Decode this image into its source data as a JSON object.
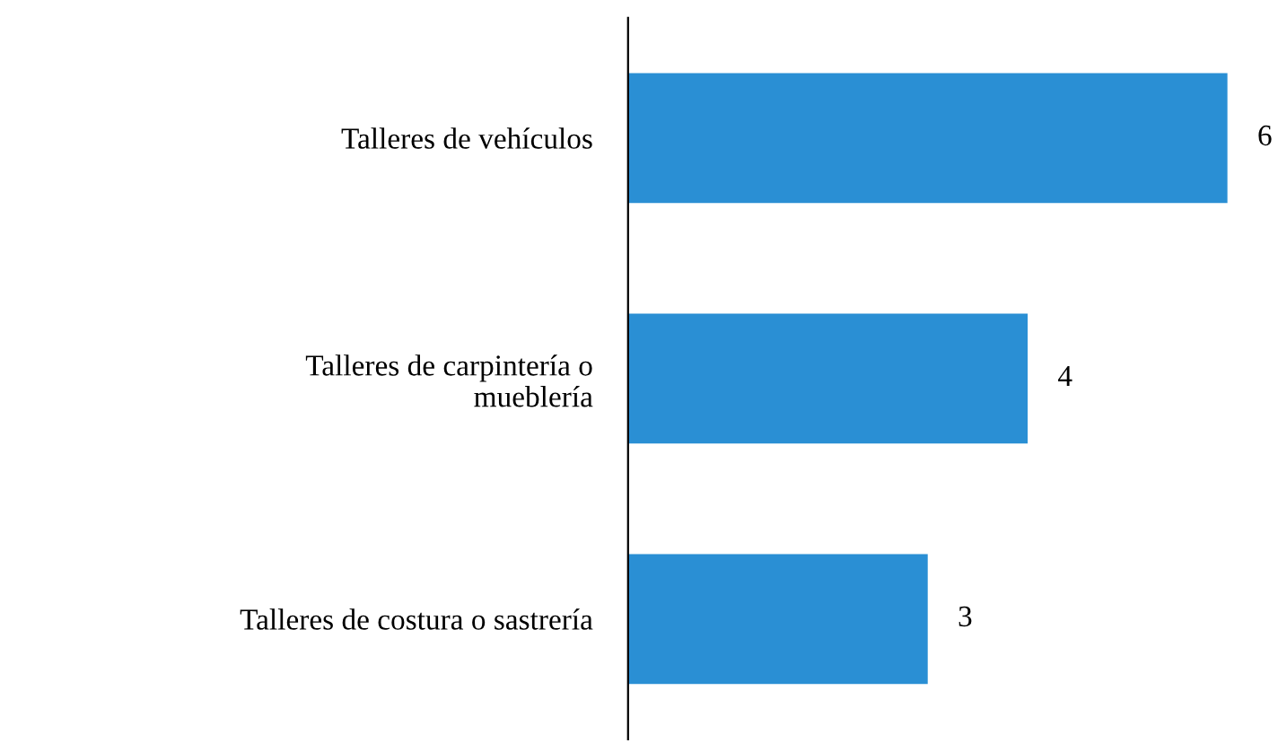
{
  "chart_data": {
    "type": "bar",
    "orientation": "horizontal",
    "categories": [
      "Talleres de vehículos",
      "Talleres de carpintería o\nmueblería",
      "Talleres de costura o sastrería"
    ],
    "values": [
      6,
      4,
      3
    ],
    "color": "#2a8fd4",
    "data_labels": true,
    "tick_labels": "y",
    "grid": false,
    "legend": false
  }
}
